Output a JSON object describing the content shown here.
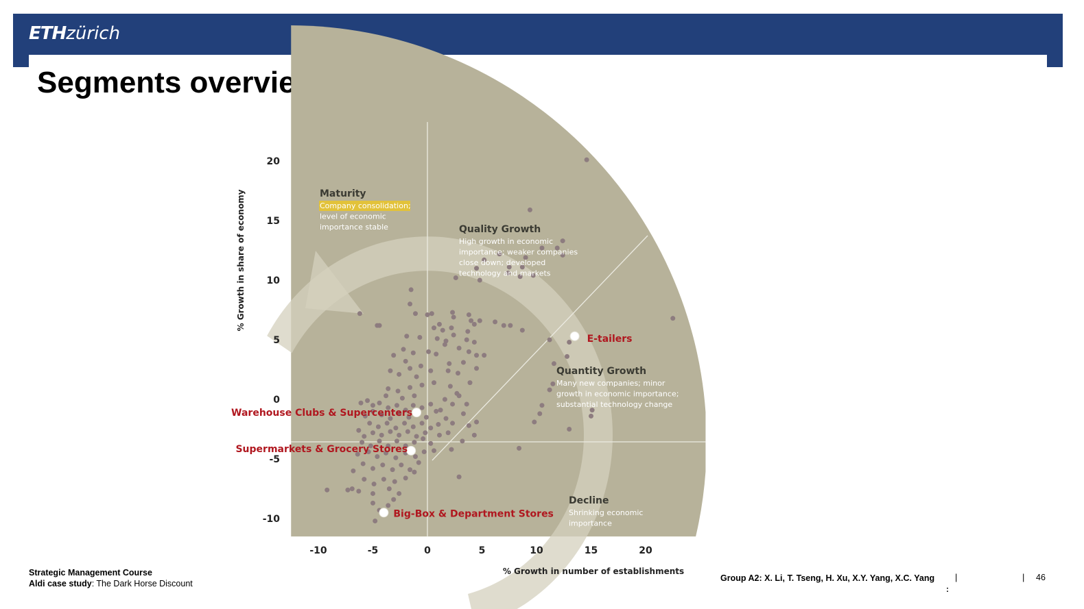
{
  "header": {
    "logo_bold": "ETH",
    "logo_light": "zürich"
  },
  "slide": {
    "title": "Segments overview"
  },
  "chart_data": {
    "type": "scatter",
    "xlabel": "% Growth in number of establishments",
    "ylabel": "% Growth in share of economy",
    "xlim": [
      -12.5,
      25.5
    ],
    "ylim": [
      -11.5,
      23.5
    ],
    "x_ticks": [
      -10,
      -5,
      0,
      5,
      10,
      15,
      20
    ],
    "y_ticks": [
      20,
      15,
      10,
      5,
      0,
      -5,
      -10
    ],
    "colors": {
      "background": "#b7b29a",
      "point": "#8d7c7f",
      "highlight_label": "#b0171f",
      "marker": "#ffffff",
      "zone_title": "#3b3b33",
      "zone_text": "#ffffff",
      "maturity_highlight": "#e2c23a"
    },
    "zones": [
      {
        "title": "Maturity",
        "highlight": "Company consolidation;",
        "lines": [
          "level of economic",
          "importance stable"
        ]
      },
      {
        "title": "Quality Growth",
        "lines": [
          "High growth in economic",
          "importance; weaker companies",
          "close down; developed",
          "technology and markets"
        ]
      },
      {
        "title": "Quantity Growth",
        "lines": [
          "Many new companies; minor",
          "growth in economic importance;",
          "substantial technology change"
        ]
      },
      {
        "title": "Decline",
        "lines": [
          "Shrinking economic",
          "importance"
        ]
      }
    ],
    "highlights": [
      {
        "name": "E-tailers",
        "x": 13.5,
        "y": 5.3
      },
      {
        "name": "Warehouse Clubs & Supercenters",
        "x": -1,
        "y": -1.1
      },
      {
        "name": "Supermarkets & Grocery Stores",
        "x": -1.5,
        "y": -4.3
      },
      {
        "name": "Big-Box & Department Stores",
        "x": -4,
        "y": -9.5
      }
    ],
    "points": [
      [
        14.6,
        20.1
      ],
      [
        9.4,
        15.9
      ],
      [
        11.9,
        12.7
      ],
      [
        12.4,
        13.3
      ],
      [
        12.4,
        12.1
      ],
      [
        10.5,
        12.7
      ],
      [
        9.0,
        11.9
      ],
      [
        6.6,
        12.2
      ],
      [
        8.7,
        11.1
      ],
      [
        7.5,
        11.1
      ],
      [
        5.2,
        11.7
      ],
      [
        4.5,
        11.0
      ],
      [
        7.4,
        10.6
      ],
      [
        8.5,
        10.3
      ],
      [
        9.7,
        10.4
      ],
      [
        4.8,
        10.0
      ],
      [
        2.6,
        10.2
      ],
      [
        22.5,
        6.8
      ],
      [
        6.2,
        6.5
      ],
      [
        7.0,
        6.2
      ],
      [
        7.6,
        6.2
      ],
      [
        8.7,
        5.8
      ],
      [
        11.2,
        5.0
      ],
      [
        13.0,
        4.8
      ],
      [
        12.8,
        3.6
      ],
      [
        11.6,
        3.0
      ],
      [
        11.5,
        1.3
      ],
      [
        11.2,
        0.8
      ],
      [
        10.5,
        -0.5
      ],
      [
        9.8,
        -1.9
      ],
      [
        10.3,
        -1.2
      ],
      [
        15.1,
        -0.9
      ],
      [
        15.0,
        -1.4
      ],
      [
        8.4,
        -4.1
      ],
      [
        13.0,
        -2.5
      ],
      [
        -6.2,
        7.2
      ],
      [
        -4.4,
        6.2
      ],
      [
        -4.6,
        6.2
      ],
      [
        -1.5,
        9.2
      ],
      [
        -1.6,
        8.0
      ],
      [
        -1.1,
        7.2
      ],
      [
        0.0,
        7.1
      ],
      [
        0.4,
        7.2
      ],
      [
        2.3,
        7.3
      ],
      [
        2.4,
        6.9
      ],
      [
        3.8,
        7.1
      ],
      [
        4.0,
        6.6
      ],
      [
        4.3,
        6.3
      ],
      [
        4.8,
        6.6
      ],
      [
        1.1,
        6.3
      ],
      [
        0.6,
        6.0
      ],
      [
        1.4,
        5.8
      ],
      [
        2.2,
        6.0
      ],
      [
        3.7,
        5.7
      ],
      [
        2.4,
        5.4
      ],
      [
        -1.9,
        5.3
      ],
      [
        -0.7,
        5.2
      ],
      [
        0.9,
        5.1
      ],
      [
        1.7,
        4.9
      ],
      [
        3.6,
        5.0
      ],
      [
        4.3,
        4.8
      ],
      [
        1.6,
        4.6
      ],
      [
        2.9,
        4.3
      ],
      [
        3.8,
        4.0
      ],
      [
        4.5,
        3.7
      ],
      [
        5.2,
        3.7
      ],
      [
        0.8,
        3.8
      ],
      [
        0.1,
        4.0
      ],
      [
        -1.3,
        3.9
      ],
      [
        -2.2,
        4.2
      ],
      [
        -3.1,
        3.7
      ],
      [
        -2.0,
        3.2
      ],
      [
        3.3,
        3.1
      ],
      [
        4.5,
        2.6
      ],
      [
        2.8,
        2.2
      ],
      [
        1.9,
        2.4
      ],
      [
        0.3,
        2.4
      ],
      [
        -0.6,
        2.8
      ],
      [
        -1.6,
        2.6
      ],
      [
        -2.6,
        2.1
      ],
      [
        -3.4,
        2.4
      ],
      [
        -1.0,
        1.9
      ],
      [
        0.6,
        1.4
      ],
      [
        2.1,
        1.1
      ],
      [
        2.7,
        0.5
      ],
      [
        1.6,
        0.0
      ],
      [
        2.3,
        -0.4
      ],
      [
        1.2,
        -0.9
      ],
      [
        -0.5,
        1.2
      ],
      [
        -1.6,
        1.0
      ],
      [
        -2.7,
        0.7
      ],
      [
        -3.6,
        0.9
      ],
      [
        -3.8,
        0.3
      ],
      [
        -2.3,
        0.1
      ],
      [
        -1.2,
        0.3
      ],
      [
        -6.1,
        -0.3
      ],
      [
        -5.5,
        -0.1
      ],
      [
        -5.0,
        -0.5
      ],
      [
        -4.4,
        -0.3
      ],
      [
        -3.6,
        -0.7
      ],
      [
        -2.8,
        -0.5
      ],
      [
        -2.0,
        -0.9
      ],
      [
        -1.3,
        -0.5
      ],
      [
        -0.5,
        -0.7
      ],
      [
        0.3,
        -0.4
      ],
      [
        0.8,
        -1.0
      ],
      [
        -0.1,
        -1.5
      ],
      [
        -0.9,
        -1.2
      ],
      [
        -1.7,
        -1.5
      ],
      [
        -2.6,
        -1.2
      ],
      [
        -3.4,
        -1.6
      ],
      [
        -4.2,
        -1.3
      ],
      [
        -5.0,
        -1.0
      ],
      [
        -5.7,
        -1.4
      ],
      [
        -5.3,
        -2.0
      ],
      [
        -4.5,
        -2.3
      ],
      [
        -3.7,
        -2.0
      ],
      [
        -2.9,
        -2.4
      ],
      [
        -2.1,
        -2.0
      ],
      [
        -1.3,
        -2.3
      ],
      [
        -0.5,
        -2.0
      ],
      [
        0.3,
        -2.4
      ],
      [
        1.0,
        -2.1
      ],
      [
        1.7,
        -1.6
      ],
      [
        2.3,
        -2.0
      ],
      [
        -0.2,
        -2.8
      ],
      [
        -1.0,
        -3.1
      ],
      [
        -1.8,
        -2.7
      ],
      [
        -2.6,
        -3.0
      ],
      [
        -3.4,
        -2.7
      ],
      [
        -4.2,
        -3.0
      ],
      [
        -5.0,
        -2.8
      ],
      [
        -5.8,
        -3.1
      ],
      [
        -6.3,
        -2.6
      ],
      [
        -6.0,
        -3.6
      ],
      [
        -5.2,
        -3.9
      ],
      [
        -4.4,
        -3.5
      ],
      [
        -3.6,
        -3.9
      ],
      [
        -2.8,
        -3.5
      ],
      [
        -2.0,
        -3.9
      ],
      [
        -1.2,
        -3.6
      ],
      [
        -0.4,
        -3.3
      ],
      [
        0.3,
        -3.7
      ],
      [
        1.1,
        -3.0
      ],
      [
        1.9,
        -2.8
      ],
      [
        0.6,
        -4.3
      ],
      [
        -0.3,
        -4.4
      ],
      [
        -1.1,
        -4.8
      ],
      [
        -2.0,
        -4.5
      ],
      [
        -2.9,
        -4.9
      ],
      [
        -3.8,
        -4.5
      ],
      [
        -4.6,
        -4.8
      ],
      [
        -5.4,
        -4.4
      ],
      [
        -6.4,
        -4.6
      ],
      [
        -5.9,
        -5.4
      ],
      [
        -5.0,
        -5.8
      ],
      [
        -4.1,
        -5.5
      ],
      [
        -3.2,
        -5.9
      ],
      [
        -2.4,
        -5.5
      ],
      [
        -1.6,
        -5.9
      ],
      [
        -0.8,
        -5.3
      ],
      [
        -2.0,
        -6.6
      ],
      [
        -3.0,
        -6.9
      ],
      [
        -4.0,
        -6.7
      ],
      [
        -4.9,
        -7.1
      ],
      [
        -5.8,
        -6.7
      ],
      [
        -6.8,
        -6.0
      ],
      [
        -7.3,
        -7.6
      ],
      [
        -6.9,
        -7.5
      ],
      [
        -6.3,
        -7.7
      ],
      [
        -5.0,
        -7.9
      ],
      [
        -3.5,
        -7.5
      ],
      [
        -2.6,
        -7.9
      ],
      [
        -3.1,
        -8.4
      ],
      [
        -5.0,
        -8.7
      ],
      [
        -4.4,
        -9.3
      ],
      [
        -4.8,
        -10.2
      ],
      [
        -9.2,
        -7.6
      ],
      [
        2.9,
        -6.5
      ],
      [
        2.2,
        -4.2
      ],
      [
        3.8,
        -2.2
      ],
      [
        4.3,
        -3.0
      ],
      [
        4.5,
        -1.9
      ],
      [
        3.3,
        -1.2
      ],
      [
        3.6,
        -0.4
      ],
      [
        2.9,
        0.3
      ],
      [
        3.9,
        1.4
      ],
      [
        2.0,
        3.0
      ],
      [
        3.2,
        -3.5
      ],
      [
        -1.2,
        -6.1
      ],
      [
        -3.6,
        -8.9
      ]
    ]
  },
  "footer": {
    "course": "Strategic Management Course",
    "case_bold": "Aldi case study",
    "case_rest": ": The Dark Horse Discount",
    "authors": "Group A2: X. Li, T. Tseng, H. Xu, X.Y. Yang, X.C. Yang",
    "separator": "|",
    "colon": ":",
    "page_number": "46"
  }
}
